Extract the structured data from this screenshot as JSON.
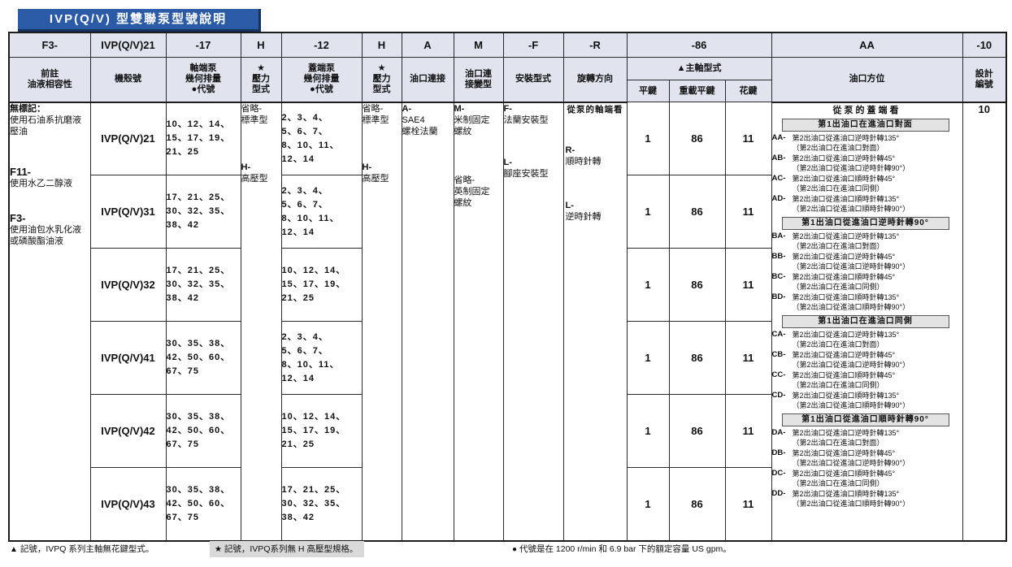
{
  "title": "IVP(Q/V) 型雙聯泵型號說明",
  "colors": {
    "banner_bg": "#2b5ba6",
    "header_bg": "#e1e4ef",
    "box_bg": "#e3e3e3",
    "highlight_bg": "#d9d9d9"
  },
  "header": {
    "codes": [
      "F3-",
      "IVP(Q/V)21",
      "-17",
      "H",
      "-12",
      "H",
      "A",
      "M",
      "-F",
      "-R",
      "-86",
      "AA",
      "-10"
    ],
    "labels": {
      "fluid": "前註\n油液相容性",
      "model": "機殼號",
      "shaft_disp": "軸端泵\n幾何排量\n●代號",
      "pressure1": "★\n壓力\n型式",
      "cover_disp": "蓋端泵\n幾何排量\n●代號",
      "pressure2": "★\n壓力\n型式",
      "port_conn": "油口連接",
      "port_var": "油口連\n接變型",
      "mounting": "安裝型式",
      "rotation": "旋轉方向",
      "shaft_type": "▲主軸型式",
      "shaft_sub": [
        "平鍵",
        "重載平鍵",
        "花鍵"
      ],
      "port_pos": "油口方位",
      "design": "設計\n編號"
    }
  },
  "fluid": {
    "items": [
      {
        "code": "無標記：",
        "desc": "使用石油系抗磨液壓油"
      },
      {
        "code": "F11-",
        "desc": "使用水乙二醇液"
      },
      {
        "code": "F3-",
        "desc": "使用油包水乳化液或磷酸酯油液"
      }
    ]
  },
  "pressure": [
    {
      "code": "省略-",
      "desc": "標準型"
    },
    {
      "code": "H-",
      "desc": "高壓型"
    }
  ],
  "port_connection": {
    "code": "A-",
    "desc": "SAE4\n螺栓法蘭"
  },
  "port_variant": [
    {
      "code": "M-",
      "desc": "米制固定\n螺紋"
    },
    {
      "code": "省略-",
      "desc": "英制固定\n螺紋"
    }
  ],
  "mounting": [
    {
      "code": "F-",
      "desc": "法蘭安裝型"
    },
    {
      "code": "L-",
      "desc": "腳座安裝型"
    }
  ],
  "rotation": {
    "view": "從泵的軸端看",
    "items": [
      {
        "code": "R-",
        "desc": "順時針轉"
      },
      {
        "code": "L-",
        "desc": "逆時針轉"
      }
    ]
  },
  "rows": [
    {
      "model": "IVP(Q/V)21",
      "shaft": "10、12、14、\n15、17、19、\n21、25",
      "cover": "2、3、4、\n5、6、7、\n8、10、11、\n12、14",
      "flat_key": "1",
      "heavy_key": "86",
      "spline": "11"
    },
    {
      "model": "IVP(Q/V)31",
      "shaft": "17、21、25、\n30、32、35、\n38、42",
      "cover": "2、3、4、\n5、6、7、\n8、10、11、\n12、14",
      "flat_key": "1",
      "heavy_key": "86",
      "spline": "11"
    },
    {
      "model": "IVP(Q/V)32",
      "shaft": "17、21、25、\n30、32、35、\n38、42",
      "cover": "10、12、14、\n15、17、19、\n21、25",
      "flat_key": "1",
      "heavy_key": "86",
      "spline": "11"
    },
    {
      "model": "IVP(Q/V)41",
      "shaft": "30、35、38、\n42、50、60、\n67、75",
      "cover": "2、3、4、\n5、6、7、\n8、10、11、\n12、14",
      "flat_key": "1",
      "heavy_key": "86",
      "spline": "11"
    },
    {
      "model": "IVP(Q/V)42",
      "shaft": "30、35、38、\n42、50、60、\n67、75",
      "cover": "10、12、14、\n15、17、19、\n21、25",
      "flat_key": "1",
      "heavy_key": "86",
      "spline": "11"
    },
    {
      "model": "IVP(Q/V)43",
      "shaft": "30、35、38、\n42、50、60、\n67、75",
      "cover": "17、21、25、\n30、32、35、\n38、42",
      "flat_key": "1",
      "heavy_key": "86",
      "spline": "11"
    }
  ],
  "port_position": {
    "view": "從泵的蓋端看",
    "sections": [
      {
        "header": "第1出油口在進油口對面",
        "items": [
          {
            "code": "AA-",
            "text": "第2出油口從進油口逆時針轉135°",
            "note": "（第2出油口在進油口對面）"
          },
          {
            "code": "AB-",
            "text": "第2出油口從進油口逆時針轉45°",
            "note": "（第2出油口從進油口逆時針轉90°）"
          },
          {
            "code": "AC-",
            "text": "第2出油口從進油口順時針轉45°",
            "note": "（第2出油口在進油口同側）"
          },
          {
            "code": "AD-",
            "text": "第2出油口從進油口順時針轉135°",
            "note": "（第2出油口從進油口順時針轉90°）"
          }
        ]
      },
      {
        "header": "第1出油口從進油口逆時針轉90°",
        "items": [
          {
            "code": "BA-",
            "text": "第2出油口從進油口逆時針轉135°",
            "note": "（第2出油口在進油口對面）"
          },
          {
            "code": "BB-",
            "text": "第2出油口從進油口逆時針轉45°",
            "note": "（第2出油口從進油口逆時針轉90°）"
          },
          {
            "code": "BC-",
            "text": "第2出油口從進油口順時針轉45°",
            "note": "（第2出油口在進油口同側）"
          },
          {
            "code": "BD-",
            "text": "第2出油口從進油口順時針轉135°",
            "note": "（第2出油口從進油口順時針轉90°）"
          }
        ]
      },
      {
        "header": "第1出油口在進油口同側",
        "items": [
          {
            "code": "CA-",
            "text": "第2出油口從進油口逆時針轉135°",
            "note": "（第2出油口在進油口對面）"
          },
          {
            "code": "CB-",
            "text": "第2出油口從進油口逆時針轉45°",
            "note": "（第2出油口從進油口逆時針轉90°）"
          },
          {
            "code": "CC-",
            "text": "第2出油口從進油口順時針轉45°",
            "note": "（第2出油口在進油口同側）"
          },
          {
            "code": "CD-",
            "text": "第2出油口從進油口順時針轉135°",
            "note": "（第2出油口從進油口順時針轉90°）"
          }
        ]
      },
      {
        "header": "第1出油口從進油口順時針轉90°",
        "items": [
          {
            "code": "DA-",
            "text": "第2出油口從進油口逆時針轉135°",
            "note": "（第2出油口在進油口對面）"
          },
          {
            "code": "DB-",
            "text": "第2出油口從進油口逆時針轉45°",
            "note": "（第2出油口從進油口逆時針轉90°）"
          },
          {
            "code": "DC-",
            "text": "第2出油口從進油口順時針轉45°",
            "note": "（第2出油口在進油口同側）"
          },
          {
            "code": "DD-",
            "text": "第2出油口從進油口順時針轉135°",
            "note": "（第2出油口從進油口順時針轉90°）"
          }
        ]
      }
    ]
  },
  "design_number": "10",
  "footnotes": [
    {
      "marker": "▲",
      "text": "記號，IVPQ 系列主軸無花鍵型式。",
      "highlight": false
    },
    {
      "marker": "★",
      "text": "記號，IVPQ系列無 H 高壓型規格。",
      "highlight": true
    },
    {
      "marker": "●",
      "text": "代號是在 1200 r/min 和 6.9 bar 下的額定容量 US gpm。",
      "highlight": false
    }
  ]
}
